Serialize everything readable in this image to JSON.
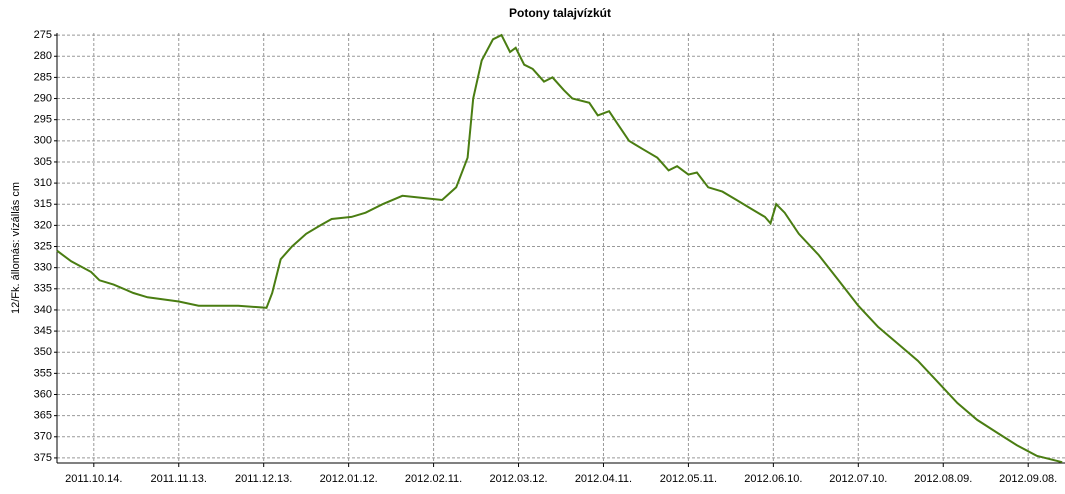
{
  "chart_data": {
    "type": "line",
    "title": "Potony talajvízkút",
    "ylabel": "12/Fk. állomás: vízállás cm",
    "y_inverted": true,
    "grid": true,
    "ylim": [
      274.5,
      376.2
    ],
    "yticks": [
      275,
      280,
      285,
      290,
      295,
      300,
      305,
      310,
      315,
      320,
      325,
      330,
      335,
      340,
      345,
      350,
      355,
      360,
      365,
      370,
      375
    ],
    "xlim": [
      "2011-10-01",
      "2012-09-21"
    ],
    "xticks": [
      {
        "value": "2011-10-14",
        "label": "2011.10.14."
      },
      {
        "value": "2011-11-13",
        "label": "2011.11.13."
      },
      {
        "value": "2011-12-13",
        "label": "2011.12.13."
      },
      {
        "value": "2012-01-12",
        "label": "2012.01.12."
      },
      {
        "value": "2012-02-11",
        "label": "2012.02.11."
      },
      {
        "value": "2012-03-12",
        "label": "2012.03.12."
      },
      {
        "value": "2012-04-11",
        "label": "2012.04.11."
      },
      {
        "value": "2012-05-11",
        "label": "2012.05.11."
      },
      {
        "value": "2012-06-10",
        "label": "2012.06.10."
      },
      {
        "value": "2012-07-10",
        "label": "2012.07.10."
      },
      {
        "value": "2012-08-09",
        "label": "2012.08.09."
      },
      {
        "value": "2012-09-08",
        "label": "2012.09.08."
      }
    ],
    "x": [
      "2011-10-01",
      "2011-10-06",
      "2011-10-13",
      "2011-10-16",
      "2011-10-21",
      "2011-10-28",
      "2011-11-02",
      "2011-11-13",
      "2011-11-20",
      "2011-12-04",
      "2011-12-14",
      "2011-12-16",
      "2011-12-19",
      "2011-12-23",
      "2011-12-28",
      "2012-01-02",
      "2012-01-06",
      "2012-01-13",
      "2012-01-18",
      "2012-01-24",
      "2012-01-31",
      "2012-02-07",
      "2012-02-14",
      "2012-02-19",
      "2012-02-23",
      "2012-02-25",
      "2012-02-28",
      "2012-03-03",
      "2012-03-06",
      "2012-03-09",
      "2012-03-11",
      "2012-03-14",
      "2012-03-17",
      "2012-03-21",
      "2012-03-24",
      "2012-03-28",
      "2012-03-31",
      "2012-04-06",
      "2012-04-09",
      "2012-04-13",
      "2012-04-16",
      "2012-04-20",
      "2012-04-25",
      "2012-04-30",
      "2012-05-04",
      "2012-05-07",
      "2012-05-11",
      "2012-05-14",
      "2012-05-18",
      "2012-05-23",
      "2012-05-28",
      "2012-06-02",
      "2012-06-07",
      "2012-06-09",
      "2012-06-11",
      "2012-06-14",
      "2012-06-19",
      "2012-06-26",
      "2012-07-03",
      "2012-07-10",
      "2012-07-17",
      "2012-07-24",
      "2012-07-31",
      "2012-08-07",
      "2012-08-14",
      "2012-08-21",
      "2012-08-28",
      "2012-09-04",
      "2012-09-11",
      "2012-09-20"
    ],
    "series": [
      {
        "color": "#4a7d12",
        "values": [
          326,
          328.5,
          331,
          333,
          334,
          336,
          337,
          338,
          339,
          339,
          339.5,
          336,
          328,
          325,
          322,
          320,
          318.5,
          318,
          317,
          315,
          313,
          313.5,
          314,
          311,
          304,
          290,
          281,
          276,
          275,
          279,
          278,
          282,
          283,
          286,
          285,
          288,
          290,
          291,
          294,
          293,
          296,
          300,
          302,
          304,
          307,
          306,
          308,
          307.5,
          311,
          312,
          314,
          316,
          318,
          319.5,
          315,
          317,
          322,
          327,
          333,
          339,
          344,
          348,
          352,
          357,
          362,
          366,
          369,
          372,
          374.5,
          376
        ]
      }
    ]
  }
}
